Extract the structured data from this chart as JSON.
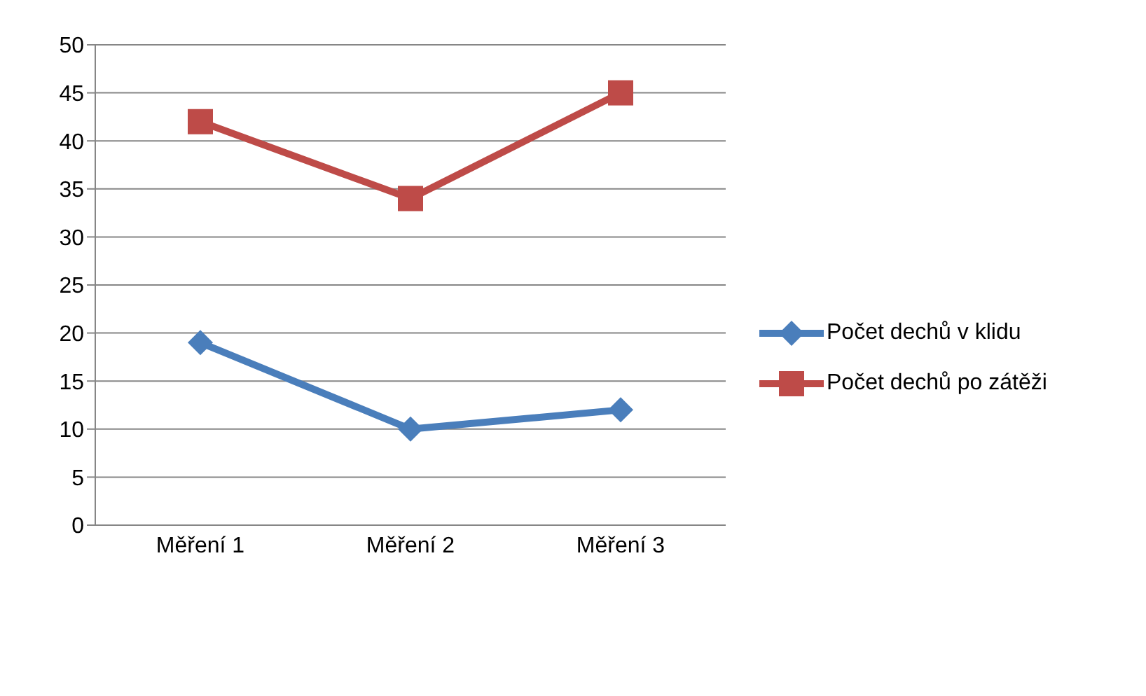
{
  "chart_data": {
    "type": "line",
    "categories": [
      "Měření 1",
      "Měření 2",
      "Měření 3"
    ],
    "series": [
      {
        "name": "Počet dechů v klidu",
        "color": "#4a7ebb",
        "values": [
          19,
          10,
          12
        ],
        "marker": "diamond"
      },
      {
        "name": "Počet dechů po zátěži",
        "color": "#be4b48",
        "values": [
          42,
          34,
          45
        ],
        "marker": "square"
      }
    ],
    "ylim": [
      0,
      50
    ],
    "yticks": [
      0,
      5,
      10,
      15,
      20,
      25,
      30,
      35,
      40,
      45,
      50
    ],
    "grid": "y",
    "legend": "right"
  }
}
